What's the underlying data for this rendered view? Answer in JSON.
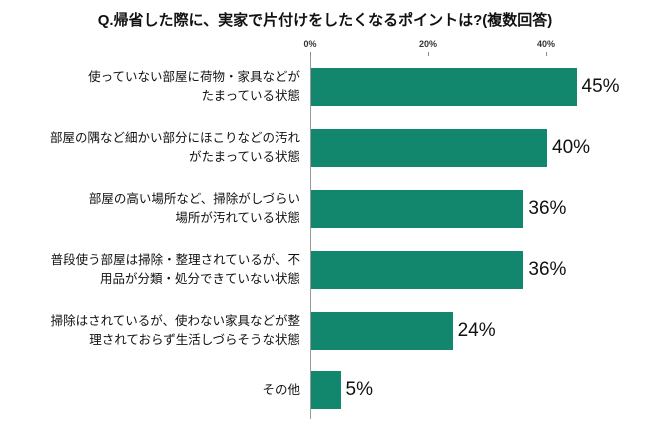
{
  "chart_data": {
    "type": "bar",
    "orientation": "horizontal",
    "title": "Q.帰省した際に、実家で片付けをしたくなるポイントは?(複数回答)",
    "bar_color": "#12876D",
    "legend": "none",
    "grid": false,
    "x_axis": {
      "position": "top",
      "ticks": [
        "0%",
        "20%",
        "40%"
      ],
      "tick_values": [
        0,
        20,
        40
      ],
      "max": 50
    },
    "categories": [
      "使っていない部屋に荷物・家具などがたまっている状態",
      "部屋の隅など細かい部分にほこりなどの汚れがたまっている状態",
      "部屋の高い場所など、掃除がしづらい場所が汚れている状態",
      "普段使う部屋は掃除・整理されているが、不用品が分類・処分できていない状態",
      "掃除はされているが、使わない家具などが整理されておらず生活しづらそうな状態",
      "その他"
    ],
    "values": [
      45,
      40,
      36,
      36,
      24,
      5
    ],
    "rows": [
      {
        "label": "使っていない部屋に荷物・家具などが\nたまっている状態",
        "value": 45,
        "value_label": "45%"
      },
      {
        "label": "部屋の隅など細かい部分にほこりなどの汚れ\nがたまっている状態",
        "value": 40,
        "value_label": "40%"
      },
      {
        "label": "部屋の高い場所など、掃除がしづらい\n場所が汚れている状態",
        "value": 36,
        "value_label": "36%"
      },
      {
        "label": "普段使う部屋は掃除・整理されているが、不\n用品が分類・処分できていない状態",
        "value": 36,
        "value_label": "36%"
      },
      {
        "label": "掃除はされているが、使わない家具などが整\n理されておらず生活しづらそうな状態",
        "value": 24,
        "value_label": "24%"
      },
      {
        "label": "その他",
        "value": 5,
        "value_label": "5%"
      }
    ]
  }
}
